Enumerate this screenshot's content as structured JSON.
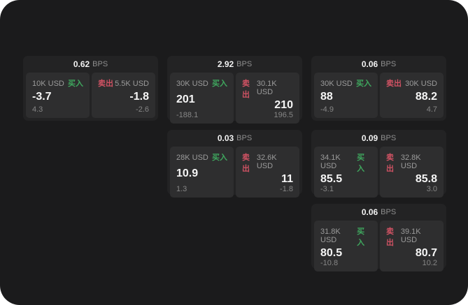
{
  "labels": {
    "buy": "买入",
    "sell": "卖出",
    "bps_unit": "BPS"
  },
  "colors": {
    "panel_bg": "#1b1b1c",
    "card_bg": "#232324",
    "tile_bg": "#2e2e2f",
    "buy_accent": "#3fa75e",
    "sell_accent": "#cf5263"
  },
  "cards": [
    {
      "bps_value": "0.62",
      "buy": {
        "size": "10K USD",
        "price": "-3.7",
        "change": "4.3"
      },
      "sell": {
        "size": "5.5K USD",
        "price": "-1.8",
        "change": "-2.6"
      }
    },
    {
      "bps_value": "2.92",
      "buy": {
        "size": "30K USD",
        "price": "201",
        "change": "-188.1"
      },
      "sell": {
        "size": "30.1K USD",
        "price": "210",
        "change": "196.5"
      }
    },
    {
      "bps_value": "0.06",
      "buy": {
        "size": "30K USD",
        "price": "88",
        "change": "-4.9"
      },
      "sell": {
        "size": "30K USD",
        "price": "88.2",
        "change": "4.7"
      }
    },
    {
      "bps_value": "0.03",
      "buy": {
        "size": "28K USD",
        "price": "10.9",
        "change": "1.3"
      },
      "sell": {
        "size": "32.6K USD",
        "price": "11",
        "change": "-1.8"
      }
    },
    {
      "bps_value": "0.09",
      "buy": {
        "size": "34.1K USD",
        "price": "85.5",
        "change": "-3.1"
      },
      "sell": {
        "size": "32.8K USD",
        "price": "85.8",
        "change": "3.0"
      }
    },
    {
      "bps_value": "0.06",
      "buy": {
        "size": "31.8K USD",
        "price": "80.5",
        "change": "-10.8"
      },
      "sell": {
        "size": "39.1K USD",
        "price": "80.7",
        "change": "10.2"
      }
    }
  ]
}
